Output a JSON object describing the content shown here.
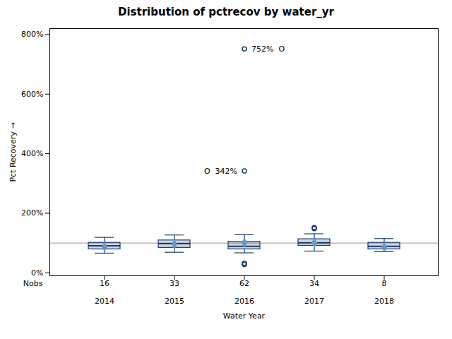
{
  "chart_data": {
    "type": "box",
    "title": "Distribution of pctrecov by water_yr",
    "xlabel": "Water Year",
    "ylabel": "Pct Recovery",
    "categories": [
      "2014",
      "2015",
      "2016",
      "2017",
      "2018"
    ],
    "boxes": [
      {
        "q1": 79,
        "median": 91,
        "q3": 101,
        "mean": 87,
        "whisker_low": 66,
        "whisker_high": 119,
        "outliers": []
      },
      {
        "q1": 84,
        "median": 98,
        "q3": 109,
        "mean": 96,
        "whisker_low": 69,
        "whisker_high": 127,
        "outliers": []
      },
      {
        "q1": 79,
        "median": 89,
        "q3": 104,
        "mean": 101,
        "whisker_low": 67,
        "whisker_high": 128,
        "outliers": [
          342,
          752,
          28,
          32
        ]
      },
      {
        "q1": 91,
        "median": 101,
        "q3": 113,
        "mean": 101,
        "whisker_low": 73,
        "whisker_high": 131,
        "outliers": [
          148,
          152
        ]
      },
      {
        "q1": 79,
        "median": 89,
        "q3": 101,
        "mean": 86,
        "whisker_low": 71,
        "whisker_high": 115,
        "outliers": []
      }
    ],
    "nobs_label": "Nobs",
    "nobs": [
      16,
      33,
      62,
      34,
      8
    ],
    "reference_line": 100,
    "annotations": [
      {
        "x": "2016",
        "y": 752,
        "text": "752%  O"
      },
      {
        "x": "2016",
        "y": 342,
        "text": "O  342%"
      }
    ],
    "ylim": [
      -10,
      820
    ],
    "yticks": [
      {
        "value": 0,
        "label": "0%"
      },
      {
        "value": 200,
        "label": "200%"
      },
      {
        "value": 400,
        "label": "400%"
      },
      {
        "value": 600,
        "label": "600%"
      },
      {
        "value": 800,
        "label": "800%"
      }
    ],
    "color": "#1a3a6b",
    "grid": false
  }
}
